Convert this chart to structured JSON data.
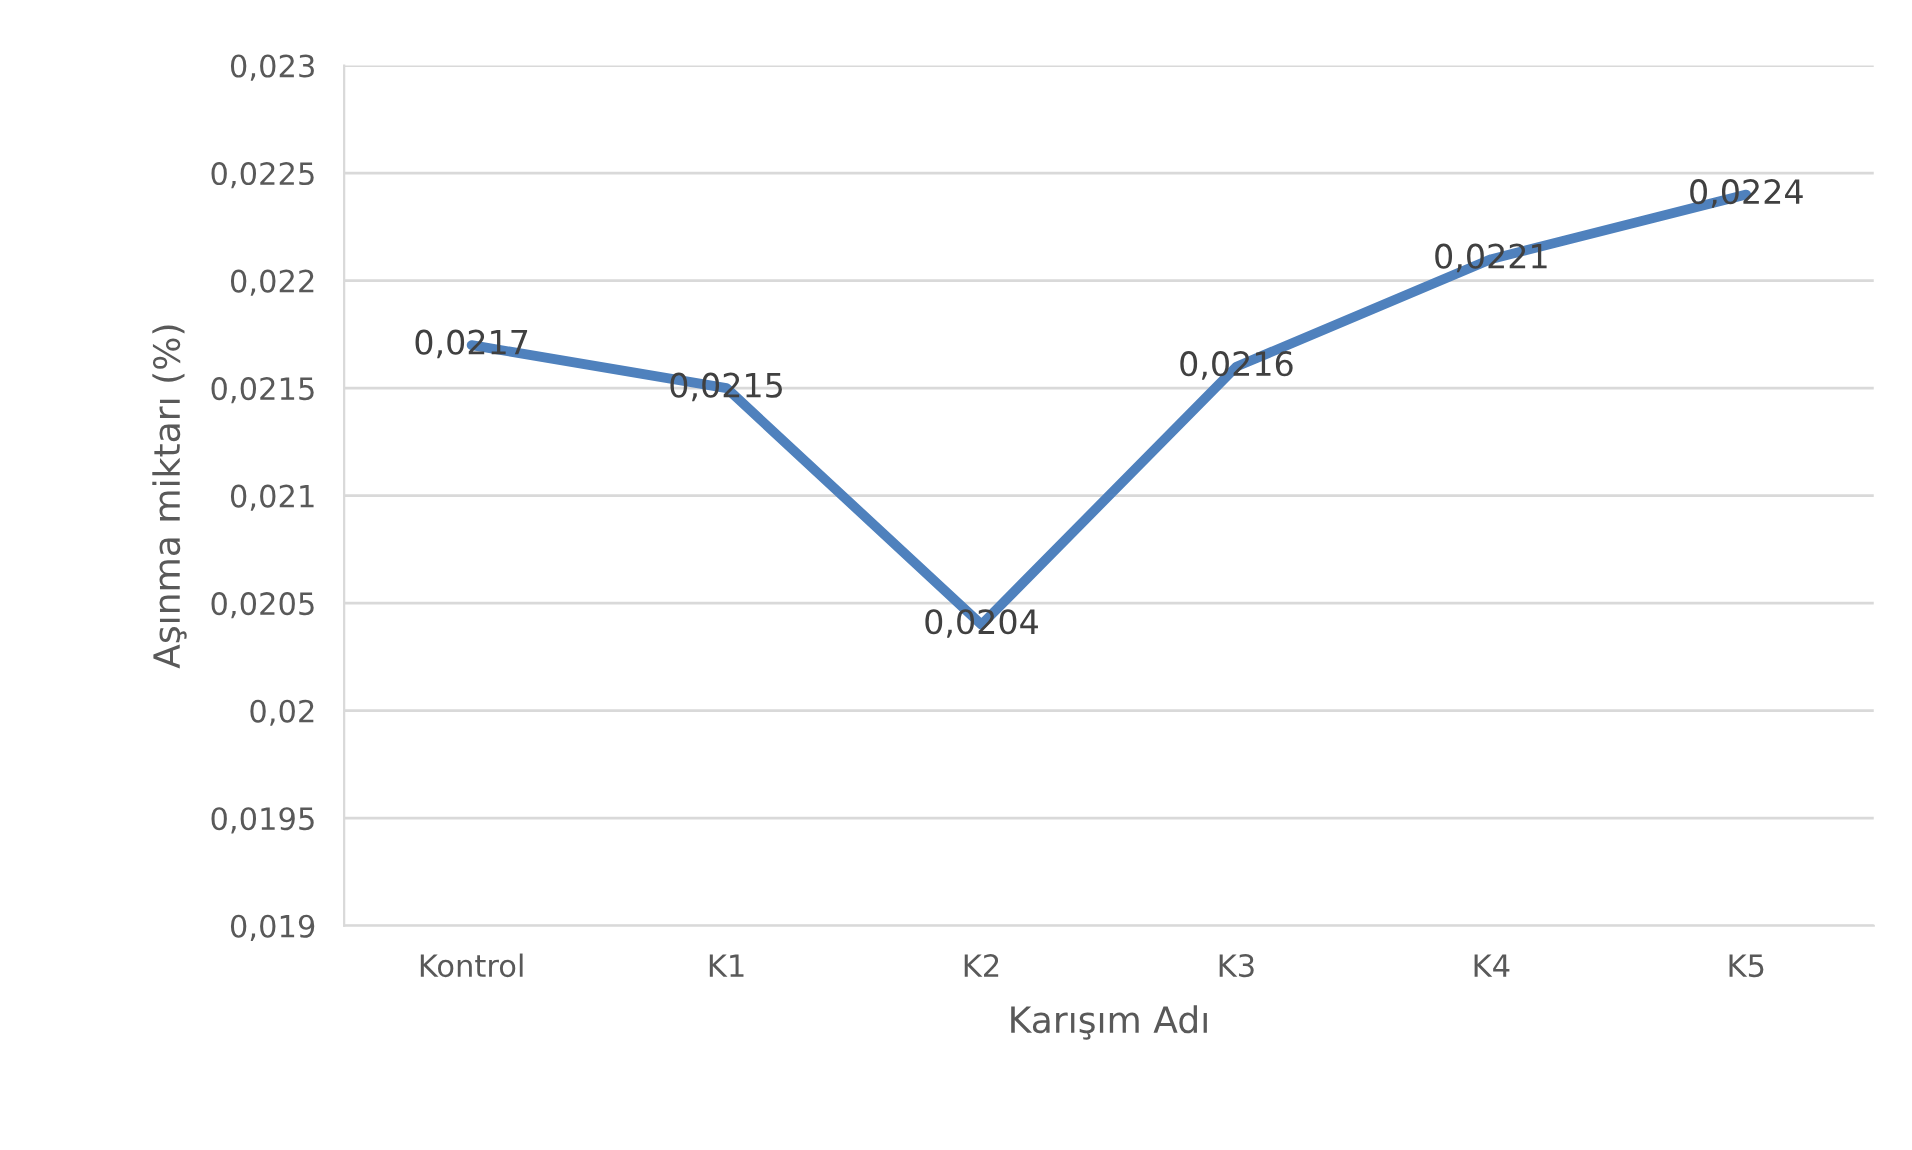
{
  "chart_data": {
    "type": "line",
    "xlabel": "Karışım Adı",
    "ylabel": "Aşınma miktarı (%)",
    "categories": [
      "Kontrol",
      "K1",
      "K2",
      "K3",
      "K4",
      "K5"
    ],
    "series": [
      {
        "color": "#4f81bd",
        "values": [
          0.0217,
          0.0215,
          0.0204,
          0.0216,
          0.0221,
          0.0224
        ],
        "value_labels": [
          "0,0217",
          "0,0215",
          "0,0204",
          "0,0216",
          "0,0221",
          "0,0224"
        ]
      }
    ],
    "ylim": [
      0.019,
      0.023
    ],
    "yticks": [
      {
        "value": 0.019,
        "label": "0,019"
      },
      {
        "value": 0.0195,
        "label": "0,0195"
      },
      {
        "value": 0.02,
        "label": "0,02"
      },
      {
        "value": 0.0205,
        "label": "0,0205"
      },
      {
        "value": 0.021,
        "label": "0,021"
      },
      {
        "value": 0.0215,
        "label": "0,0215"
      },
      {
        "value": 0.022,
        "label": "0,022"
      },
      {
        "value": 0.0225,
        "label": "0,0225"
      },
      {
        "value": 0.023,
        "label": "0,023"
      }
    ],
    "grid": "y",
    "marker": "none",
    "line_style": "solid"
  }
}
